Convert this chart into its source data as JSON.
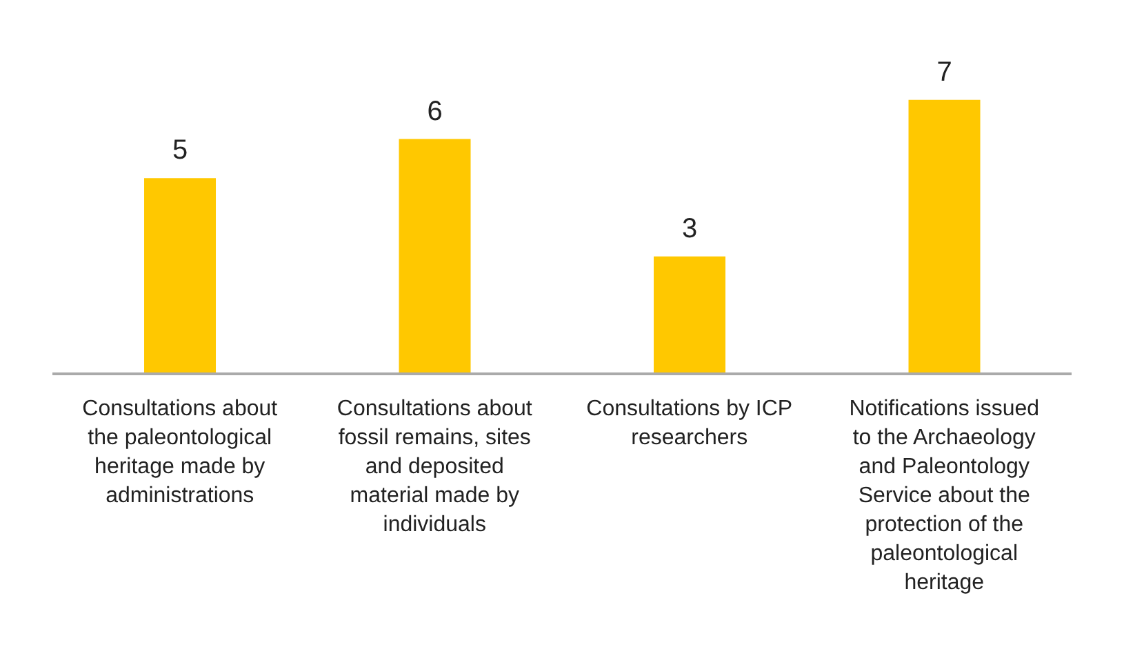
{
  "chart_data": {
    "type": "bar",
    "categories": [
      "Consultations about the paleontological heritage made by administrations",
      "Consultations about fossil remains, sites and deposited material made by individuals",
      "Consultations by ICP researchers",
      "Notifications issued to the Archaeology and Paleontology Service about the protection of the paleontological heritage"
    ],
    "values": [
      5,
      6,
      3,
      7
    ],
    "color": "#ffc800",
    "data_labels": true,
    "grid": false,
    "legend": false
  }
}
